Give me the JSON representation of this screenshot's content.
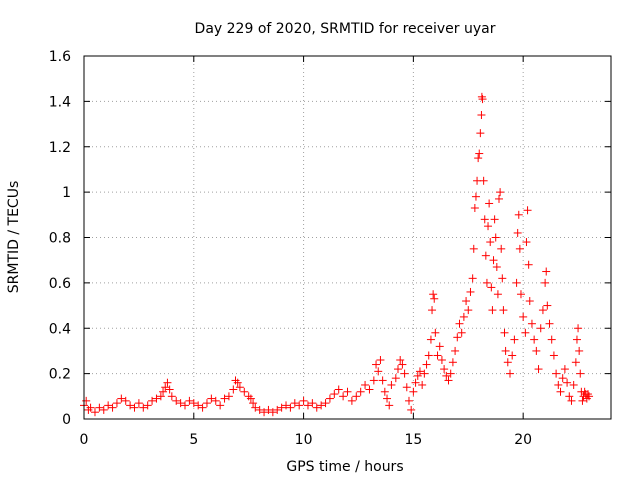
{
  "chart_data": {
    "type": "scatter",
    "title": "Day 229 of 2020, SRMTID for receiver uyar",
    "xlabel": "GPS time / hours",
    "ylabel": "SRMTID / TECUs",
    "xlim": [
      0,
      24
    ],
    "ylim": [
      0,
      1.6
    ],
    "x_ticks": [
      0,
      5,
      10,
      15,
      20
    ],
    "x_tick_labels": [
      "0",
      "5",
      "10",
      "15",
      "20"
    ],
    "y_ticks": [
      0,
      0.2,
      0.4,
      0.6,
      0.8,
      1.0,
      1.2,
      1.4,
      1.6
    ],
    "y_tick_labels": [
      "0",
      "0.2",
      "0.4",
      "0.6",
      "0.8",
      "1",
      "1.2",
      "1.4",
      "1.6"
    ],
    "grid": true,
    "marker": "+",
    "series": [
      {
        "name": "SRMTID",
        "color": "#ff0000",
        "points": [
          [
            0.0,
            0.06
          ],
          [
            0.1,
            0.08
          ],
          [
            0.2,
            0.04
          ],
          [
            0.3,
            0.05
          ],
          [
            0.5,
            0.03
          ],
          [
            0.7,
            0.05
          ],
          [
            0.9,
            0.04
          ],
          [
            1.1,
            0.06
          ],
          [
            1.3,
            0.05
          ],
          [
            1.5,
            0.07
          ],
          [
            1.7,
            0.09
          ],
          [
            1.9,
            0.08
          ],
          [
            2.1,
            0.06
          ],
          [
            2.3,
            0.05
          ],
          [
            2.5,
            0.07
          ],
          [
            2.7,
            0.05
          ],
          [
            2.9,
            0.06
          ],
          [
            3.1,
            0.08
          ],
          [
            3.3,
            0.09
          ],
          [
            3.5,
            0.1
          ],
          [
            3.6,
            0.12
          ],
          [
            3.7,
            0.14
          ],
          [
            3.8,
            0.16
          ],
          [
            3.9,
            0.13
          ],
          [
            4.0,
            0.1
          ],
          [
            4.2,
            0.08
          ],
          [
            4.4,
            0.07
          ],
          [
            4.6,
            0.06
          ],
          [
            4.8,
            0.08
          ],
          [
            5.0,
            0.07
          ],
          [
            5.2,
            0.06
          ],
          [
            5.4,
            0.05
          ],
          [
            5.6,
            0.07
          ],
          [
            5.8,
            0.09
          ],
          [
            6.0,
            0.08
          ],
          [
            6.2,
            0.06
          ],
          [
            6.4,
            0.09
          ],
          [
            6.6,
            0.1
          ],
          [
            6.8,
            0.13
          ],
          [
            6.9,
            0.17
          ],
          [
            7.0,
            0.16
          ],
          [
            7.1,
            0.14
          ],
          [
            7.3,
            0.12
          ],
          [
            7.5,
            0.1
          ],
          [
            7.6,
            0.09
          ],
          [
            7.7,
            0.07
          ],
          [
            7.8,
            0.05
          ],
          [
            8.0,
            0.04
          ],
          [
            8.2,
            0.03
          ],
          [
            8.4,
            0.04
          ],
          [
            8.6,
            0.03
          ],
          [
            8.8,
            0.04
          ],
          [
            9.0,
            0.05
          ],
          [
            9.2,
            0.06
          ],
          [
            9.4,
            0.05
          ],
          [
            9.6,
            0.07
          ],
          [
            9.8,
            0.06
          ],
          [
            10.0,
            0.08
          ],
          [
            10.2,
            0.06
          ],
          [
            10.4,
            0.07
          ],
          [
            10.6,
            0.05
          ],
          [
            10.8,
            0.06
          ],
          [
            11.0,
            0.07
          ],
          [
            11.2,
            0.09
          ],
          [
            11.4,
            0.11
          ],
          [
            11.6,
            0.13
          ],
          [
            11.8,
            0.1
          ],
          [
            12.0,
            0.12
          ],
          [
            12.2,
            0.08
          ],
          [
            12.4,
            0.1
          ],
          [
            12.6,
            0.12
          ],
          [
            12.8,
            0.15
          ],
          [
            13.0,
            0.13
          ],
          [
            13.2,
            0.17
          ],
          [
            13.3,
            0.24
          ],
          [
            13.4,
            0.21
          ],
          [
            13.5,
            0.26
          ],
          [
            13.6,
            0.17
          ],
          [
            13.7,
            0.12
          ],
          [
            13.8,
            0.09
          ],
          [
            13.9,
            0.06
          ],
          [
            14.0,
            0.15
          ],
          [
            14.2,
            0.18
          ],
          [
            14.3,
            0.22
          ],
          [
            14.4,
            0.26
          ],
          [
            14.5,
            0.24
          ],
          [
            14.6,
            0.2
          ],
          [
            14.7,
            0.14
          ],
          [
            14.8,
            0.08
          ],
          [
            14.9,
            0.04
          ],
          [
            15.0,
            0.12
          ],
          [
            15.1,
            0.16
          ],
          [
            15.2,
            0.19
          ],
          [
            15.3,
            0.21
          ],
          [
            15.4,
            0.15
          ],
          [
            15.5,
            0.2
          ],
          [
            15.6,
            0.24
          ],
          [
            15.7,
            0.28
          ],
          [
            15.8,
            0.35
          ],
          [
            15.85,
            0.48
          ],
          [
            15.9,
            0.55
          ],
          [
            15.95,
            0.53
          ],
          [
            16.0,
            0.38
          ],
          [
            16.1,
            0.28
          ],
          [
            16.2,
            0.32
          ],
          [
            16.3,
            0.26
          ],
          [
            16.4,
            0.22
          ],
          [
            16.5,
            0.19
          ],
          [
            16.6,
            0.17
          ],
          [
            16.7,
            0.2
          ],
          [
            16.8,
            0.25
          ],
          [
            16.9,
            0.3
          ],
          [
            17.0,
            0.36
          ],
          [
            17.1,
            0.42
          ],
          [
            17.2,
            0.38
          ],
          [
            17.3,
            0.45
          ],
          [
            17.4,
            0.52
          ],
          [
            17.5,
            0.48
          ],
          [
            17.6,
            0.56
          ],
          [
            17.7,
            0.62
          ],
          [
            17.75,
            0.75
          ],
          [
            17.8,
            0.93
          ],
          [
            17.85,
            0.98
          ],
          [
            17.9,
            1.05
          ],
          [
            17.95,
            1.15
          ],
          [
            18.0,
            1.17
          ],
          [
            18.05,
            1.26
          ],
          [
            18.1,
            1.34
          ],
          [
            18.12,
            1.42
          ],
          [
            18.15,
            1.41
          ],
          [
            18.2,
            1.05
          ],
          [
            18.25,
            0.88
          ],
          [
            18.3,
            0.72
          ],
          [
            18.35,
            0.6
          ],
          [
            18.4,
            0.85
          ],
          [
            18.45,
            0.95
          ],
          [
            18.5,
            0.78
          ],
          [
            18.55,
            0.58
          ],
          [
            18.6,
            0.48
          ],
          [
            18.65,
            0.7
          ],
          [
            18.7,
            0.88
          ],
          [
            18.75,
            0.8
          ],
          [
            18.8,
            0.67
          ],
          [
            18.85,
            0.55
          ],
          [
            18.9,
            0.97
          ],
          [
            18.95,
            1.0
          ],
          [
            19.0,
            0.75
          ],
          [
            19.05,
            0.62
          ],
          [
            19.1,
            0.48
          ],
          [
            19.15,
            0.38
          ],
          [
            19.2,
            0.3
          ],
          [
            19.3,
            0.25
          ],
          [
            19.4,
            0.2
          ],
          [
            19.5,
            0.28
          ],
          [
            19.6,
            0.35
          ],
          [
            19.7,
            0.6
          ],
          [
            19.75,
            0.82
          ],
          [
            19.8,
            0.9
          ],
          [
            19.85,
            0.75
          ],
          [
            19.9,
            0.55
          ],
          [
            20.0,
            0.45
          ],
          [
            20.1,
            0.38
          ],
          [
            20.15,
            0.78
          ],
          [
            20.2,
            0.92
          ],
          [
            20.25,
            0.68
          ],
          [
            20.3,
            0.52
          ],
          [
            20.4,
            0.42
          ],
          [
            20.5,
            0.35
          ],
          [
            20.6,
            0.3
          ],
          [
            20.7,
            0.22
          ],
          [
            20.8,
            0.4
          ],
          [
            20.9,
            0.48
          ],
          [
            21.0,
            0.6
          ],
          [
            21.05,
            0.65
          ],
          [
            21.1,
            0.5
          ],
          [
            21.2,
            0.42
          ],
          [
            21.3,
            0.35
          ],
          [
            21.4,
            0.28
          ],
          [
            21.5,
            0.2
          ],
          [
            21.6,
            0.15
          ],
          [
            21.7,
            0.12
          ],
          [
            21.8,
            0.18
          ],
          [
            21.9,
            0.22
          ],
          [
            22.0,
            0.16
          ],
          [
            22.1,
            0.1
          ],
          [
            22.2,
            0.08
          ],
          [
            22.3,
            0.15
          ],
          [
            22.4,
            0.25
          ],
          [
            22.45,
            0.35
          ],
          [
            22.5,
            0.4
          ],
          [
            22.55,
            0.3
          ],
          [
            22.6,
            0.2
          ],
          [
            22.65,
            0.12
          ],
          [
            22.7,
            0.08
          ],
          [
            22.75,
            0.1
          ],
          [
            22.8,
            0.12
          ],
          [
            22.85,
            0.11
          ],
          [
            22.9,
            0.09
          ],
          [
            22.95,
            0.11
          ],
          [
            23.0,
            0.1
          ]
        ]
      }
    ]
  }
}
